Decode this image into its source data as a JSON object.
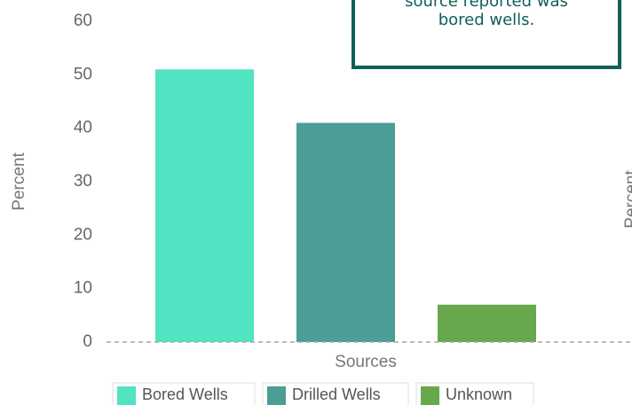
{
  "chart_data": {
    "type": "bar",
    "categories": [
      "Bored Wells",
      "Drilled Wells",
      "Unknown"
    ],
    "values": [
      51,
      41,
      7
    ],
    "colors": [
      "#52e3c2",
      "#4a9e96",
      "#67a84d"
    ],
    "ylim": [
      0,
      60
    ],
    "yticks": [
      0,
      10,
      20,
      30,
      40,
      50,
      60
    ],
    "y_label": "Percent",
    "x_label": "Sources",
    "annotation": [
      "source reported was",
      "bored wells."
    ],
    "next_chart_y_label": "Percent"
  }
}
